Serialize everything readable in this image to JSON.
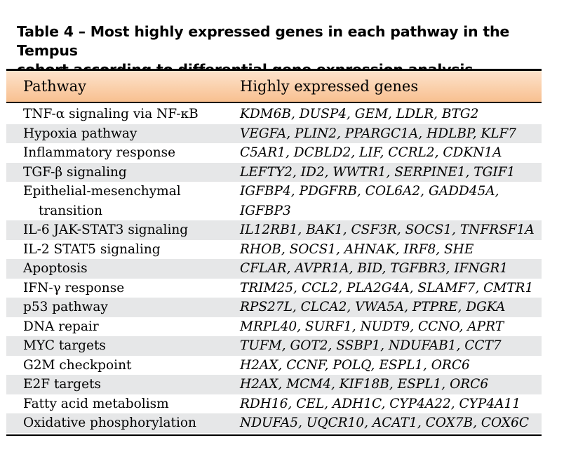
{
  "caption": {
    "line1": "Table 4 – Most highly expressed genes in each pathway in the Tempus",
    "line2": "cohort according to differential gene expression analysis"
  },
  "colors": {
    "header_bg": "#f8c090",
    "row_shade": "#e6e7e8",
    "rule": "#000000"
  },
  "table": {
    "headers": {
      "pathway": "Pathway",
      "genes": "Highly expressed genes"
    },
    "rows": [
      {
        "pathway": "TNF-α signaling via NF-κB",
        "genes": "KDM6B, DUSP4, GEM, LDLR, BTG2"
      },
      {
        "pathway": "Hypoxia pathway",
        "genes": "VEGFA, PLIN2, PPARGC1A, HDLBP, KLF7"
      },
      {
        "pathway": "Inflammatory response",
        "genes": "C5AR1, DCBLD2, LIF, CCRL2, CDKN1A"
      },
      {
        "pathway": "TGF-β signaling",
        "genes": "LEFTY2, ID2, WWTR1, SERPINE1, TGIF1"
      },
      {
        "pathway_l1": "Epithelial-mesenchymal",
        "pathway_l2": "transition",
        "genes_l1": "IGFBP4, PDGFRB, COL6A2, GADD45A,",
        "genes_l2": "IGFBP3"
      },
      {
        "pathway": "IL-6 JAK-STAT3 signaling",
        "genes": "IL12RB1, BAK1, CSF3R, SOCS1, TNFRSF1A"
      },
      {
        "pathway": "IL-2 STAT5 signaling",
        "genes": "RHOB, SOCS1, AHNAK, IRF8, SHE"
      },
      {
        "pathway": "Apoptosis",
        "genes": "CFLAR, AVPR1A, BID, TGFBR3, IFNGR1"
      },
      {
        "pathway": "IFN-γ response",
        "genes": "TRIM25, CCL2, PLA2G4A, SLAMF7, CMTR1"
      },
      {
        "pathway": "p53 pathway",
        "genes": "RPS27L, CLCA2, VWA5A, PTPRE, DGKA"
      },
      {
        "pathway": "DNA repair",
        "genes": "MRPL40, SURF1, NUDT9, CCNO, APRT"
      },
      {
        "pathway": "MYC targets",
        "genes": "TUFM, GOT2, SSBP1, NDUFAB1, CCT7"
      },
      {
        "pathway": "G2M checkpoint",
        "genes": "H2AX, CCNF, POLQ, ESPL1, ORC6"
      },
      {
        "pathway": "E2F targets",
        "genes": "H2AX, MCM4, KIF18B, ESPL1, ORC6"
      },
      {
        "pathway": "Fatty acid metabolism",
        "genes": "RDH16, CEL, ADH1C, CYP4A22, CYP4A11"
      },
      {
        "pathway": "Oxidative phosphorylation",
        "genes": "NDUFA5, UQCR10, ACAT1, COX7B, COX6C"
      }
    ]
  }
}
